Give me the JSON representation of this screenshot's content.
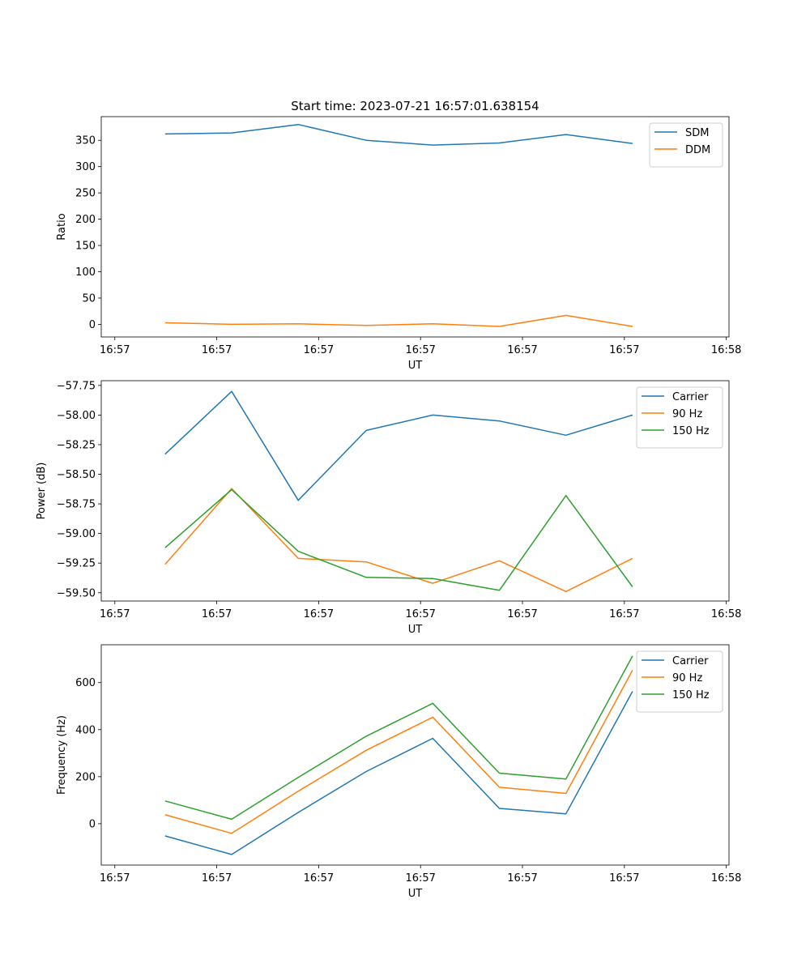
{
  "figure": {
    "title": "Start time: 2023-07-21 16:57:01.638154"
  },
  "colors": {
    "c0": "#1f77b4",
    "c1": "#ff7f0e",
    "c2": "#2ca02c"
  },
  "chart_data": [
    {
      "type": "line",
      "title": "Start time: 2023-07-21 16:57:01.638154",
      "xlabel": "UT",
      "ylabel": "Ratio",
      "xlim": [
        -0.1,
        4.52
      ],
      "ylim": [
        -24,
        395
      ],
      "xticks": [
        0,
        0.75,
        1.5,
        2.25,
        3.0,
        3.75,
        4.5
      ],
      "xtick_labels": [
        "16:57",
        "16:57",
        "16:57",
        "16:57",
        "16:57",
        "16:57",
        "16:58"
      ],
      "yticks": [
        0,
        50,
        100,
        150,
        200,
        250,
        300,
        350
      ],
      "ytick_labels": [
        "0",
        "50",
        "100",
        "150",
        "200",
        "250",
        "300",
        "350"
      ],
      "legend": "top-right",
      "x": [
        0.37,
        0.86,
        1.35,
        1.85,
        2.34,
        2.83,
        3.32,
        3.81
      ],
      "series": [
        {
          "name": "SDM",
          "color": "#1f77b4",
          "values": [
            362,
            364,
            380,
            350,
            341,
            345,
            361,
            344
          ]
        },
        {
          "name": "DDM",
          "color": "#ff7f0e",
          "values": [
            3,
            0,
            1,
            -2,
            1,
            -4,
            17,
            -4
          ]
        }
      ]
    },
    {
      "type": "line",
      "xlabel": "UT",
      "ylabel": "Power (dB)",
      "xlim": [
        -0.1,
        4.52
      ],
      "ylim": [
        -59.57,
        -57.71
      ],
      "xticks": [
        0,
        0.75,
        1.5,
        2.25,
        3.0,
        3.75,
        4.5
      ],
      "xtick_labels": [
        "16:57",
        "16:57",
        "16:57",
        "16:57",
        "16:57",
        "16:57",
        "16:58"
      ],
      "yticks": [
        -59.5,
        -59.25,
        -59.0,
        -58.75,
        -58.5,
        -58.25,
        -58.0,
        -57.75
      ],
      "ytick_labels": [
        "−59.50",
        "−59.25",
        "−59.00",
        "−58.75",
        "−58.50",
        "−58.25",
        "−58.00",
        "−57.75"
      ],
      "legend": "top-right",
      "x": [
        0.37,
        0.86,
        1.35,
        1.85,
        2.34,
        2.83,
        3.32,
        3.81
      ],
      "series": [
        {
          "name": "Carrier",
          "color": "#1f77b4",
          "values": [
            -58.33,
            -57.8,
            -58.72,
            -58.13,
            -58.0,
            -58.05,
            -58.17,
            -58.0
          ]
        },
        {
          "name": "90 Hz",
          "color": "#ff7f0e",
          "values": [
            -59.26,
            -58.62,
            -59.21,
            -59.24,
            -59.42,
            -59.23,
            -59.49,
            -59.21
          ]
        },
        {
          "name": "150 Hz",
          "color": "#2ca02c",
          "values": [
            -59.12,
            -58.63,
            -59.15,
            -59.37,
            -59.38,
            -59.48,
            -58.68,
            -59.45
          ]
        }
      ]
    },
    {
      "type": "line",
      "xlabel": "UT",
      "ylabel": "Frequency (Hz)",
      "xlim": [
        -0.1,
        4.52
      ],
      "ylim": [
        -176,
        761
      ],
      "xticks": [
        0,
        0.75,
        1.5,
        2.25,
        3.0,
        3.75,
        4.5
      ],
      "xtick_labels": [
        "16:57",
        "16:57",
        "16:57",
        "16:57",
        "16:57",
        "16:57",
        "16:58"
      ],
      "yticks": [
        0,
        200,
        400,
        600
      ],
      "ytick_labels": [
        "0",
        "200",
        "400",
        "600"
      ],
      "legend": "top-right",
      "x": [
        0.37,
        0.86,
        1.35,
        1.85,
        2.34,
        2.83,
        3.32,
        3.81
      ],
      "series": [
        {
          "name": "Carrier",
          "color": "#1f77b4",
          "values": [
            -52,
            -131,
            48,
            222,
            363,
            65,
            42,
            563
          ]
        },
        {
          "name": "90 Hz",
          "color": "#ff7f0e",
          "values": [
            38,
            -41,
            138,
            312,
            453,
            155,
            129,
            653
          ]
        },
        {
          "name": "150 Hz",
          "color": "#2ca02c",
          "values": [
            97,
            19,
            197,
            372,
            512,
            215,
            190,
            713
          ]
        }
      ]
    }
  ]
}
